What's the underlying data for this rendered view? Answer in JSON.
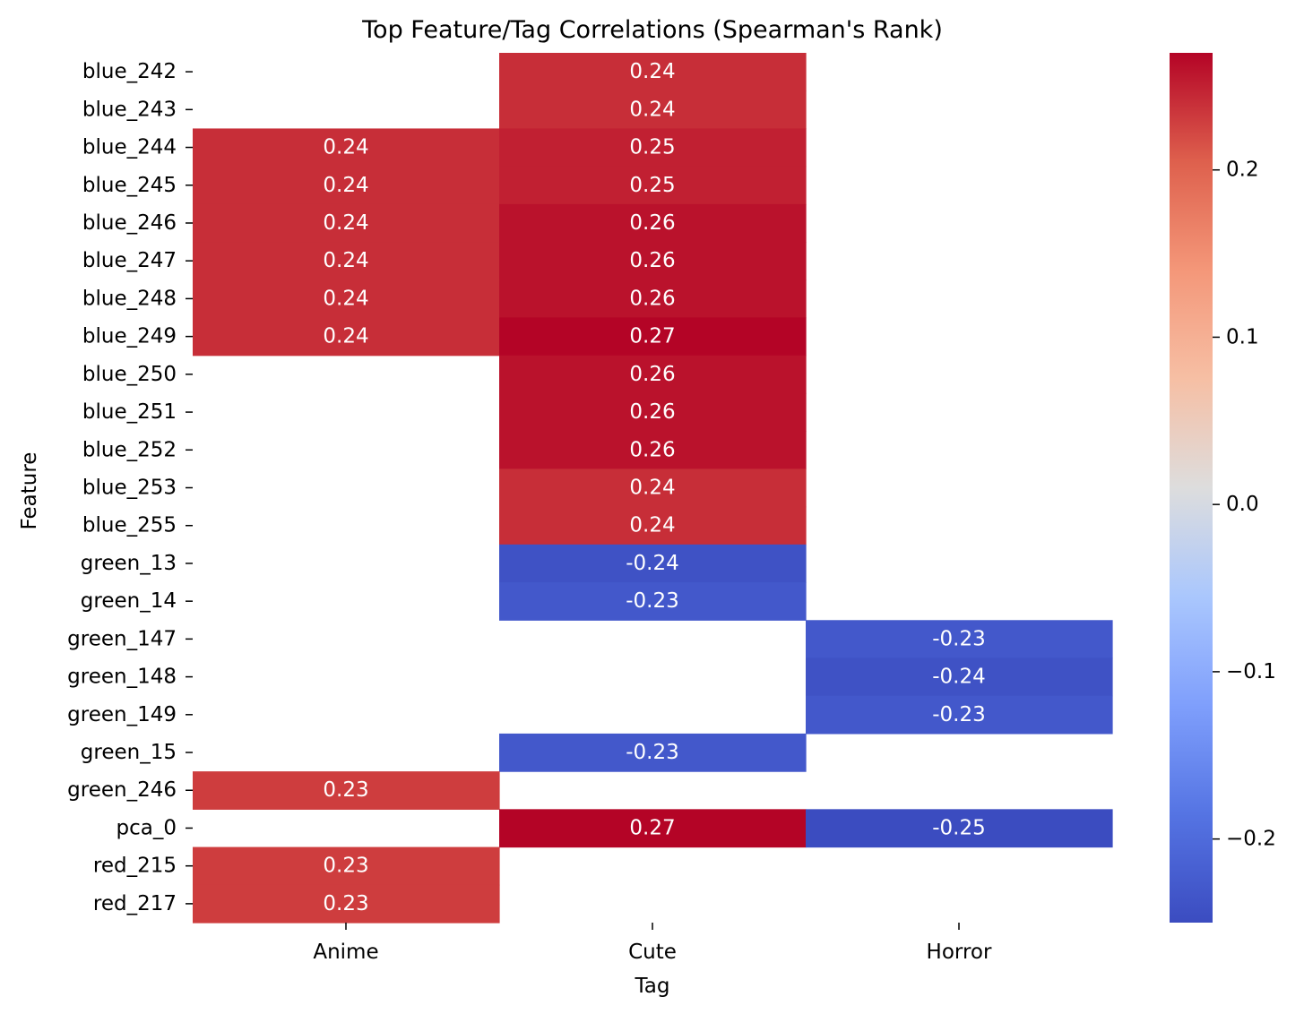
{
  "chart_data": {
    "type": "heatmap",
    "title": "Top Feature/Tag Correlations (Spearman's Rank)",
    "xlabel": "Tag",
    "ylabel": "Feature",
    "columns": [
      "Anime",
      "Cute",
      "Horror"
    ],
    "rows": [
      "blue_242",
      "blue_243",
      "blue_244",
      "blue_245",
      "blue_246",
      "blue_247",
      "blue_248",
      "blue_249",
      "blue_250",
      "blue_251",
      "blue_252",
      "blue_253",
      "blue_255",
      "green_13",
      "green_14",
      "green_147",
      "green_148",
      "green_149",
      "green_15",
      "green_246",
      "pca_0",
      "red_215",
      "red_217"
    ],
    "values": [
      [
        null,
        0.24,
        null
      ],
      [
        null,
        0.24,
        null
      ],
      [
        0.24,
        0.25,
        null
      ],
      [
        0.24,
        0.25,
        null
      ],
      [
        0.24,
        0.26,
        null
      ],
      [
        0.24,
        0.26,
        null
      ],
      [
        0.24,
        0.26,
        null
      ],
      [
        0.24,
        0.27,
        null
      ],
      [
        null,
        0.26,
        null
      ],
      [
        null,
        0.26,
        null
      ],
      [
        null,
        0.26,
        null
      ],
      [
        null,
        0.24,
        null
      ],
      [
        null,
        0.24,
        null
      ],
      [
        null,
        -0.24,
        null
      ],
      [
        null,
        -0.23,
        null
      ],
      [
        null,
        null,
        -0.23
      ],
      [
        null,
        null,
        -0.24
      ],
      [
        null,
        null,
        -0.23
      ],
      [
        null,
        -0.23,
        null
      ],
      [
        0.23,
        null,
        null
      ],
      [
        null,
        0.27,
        -0.25
      ],
      [
        0.23,
        null,
        null
      ],
      [
        0.23,
        null,
        null
      ]
    ],
    "colormap": "coolwarm",
    "vmin": -0.25,
    "vmax": 0.27,
    "colorbar_ticks": [
      "0.2",
      "0.1",
      "0.0",
      "−0.1",
      "−0.2"
    ],
    "colorbar_tick_values": [
      0.2,
      0.1,
      0.0,
      -0.1,
      -0.2
    ],
    "colors": {
      "cool_end": "#3b4cc0",
      "mid": "#dddddd",
      "warm_end": "#b40426"
    }
  }
}
